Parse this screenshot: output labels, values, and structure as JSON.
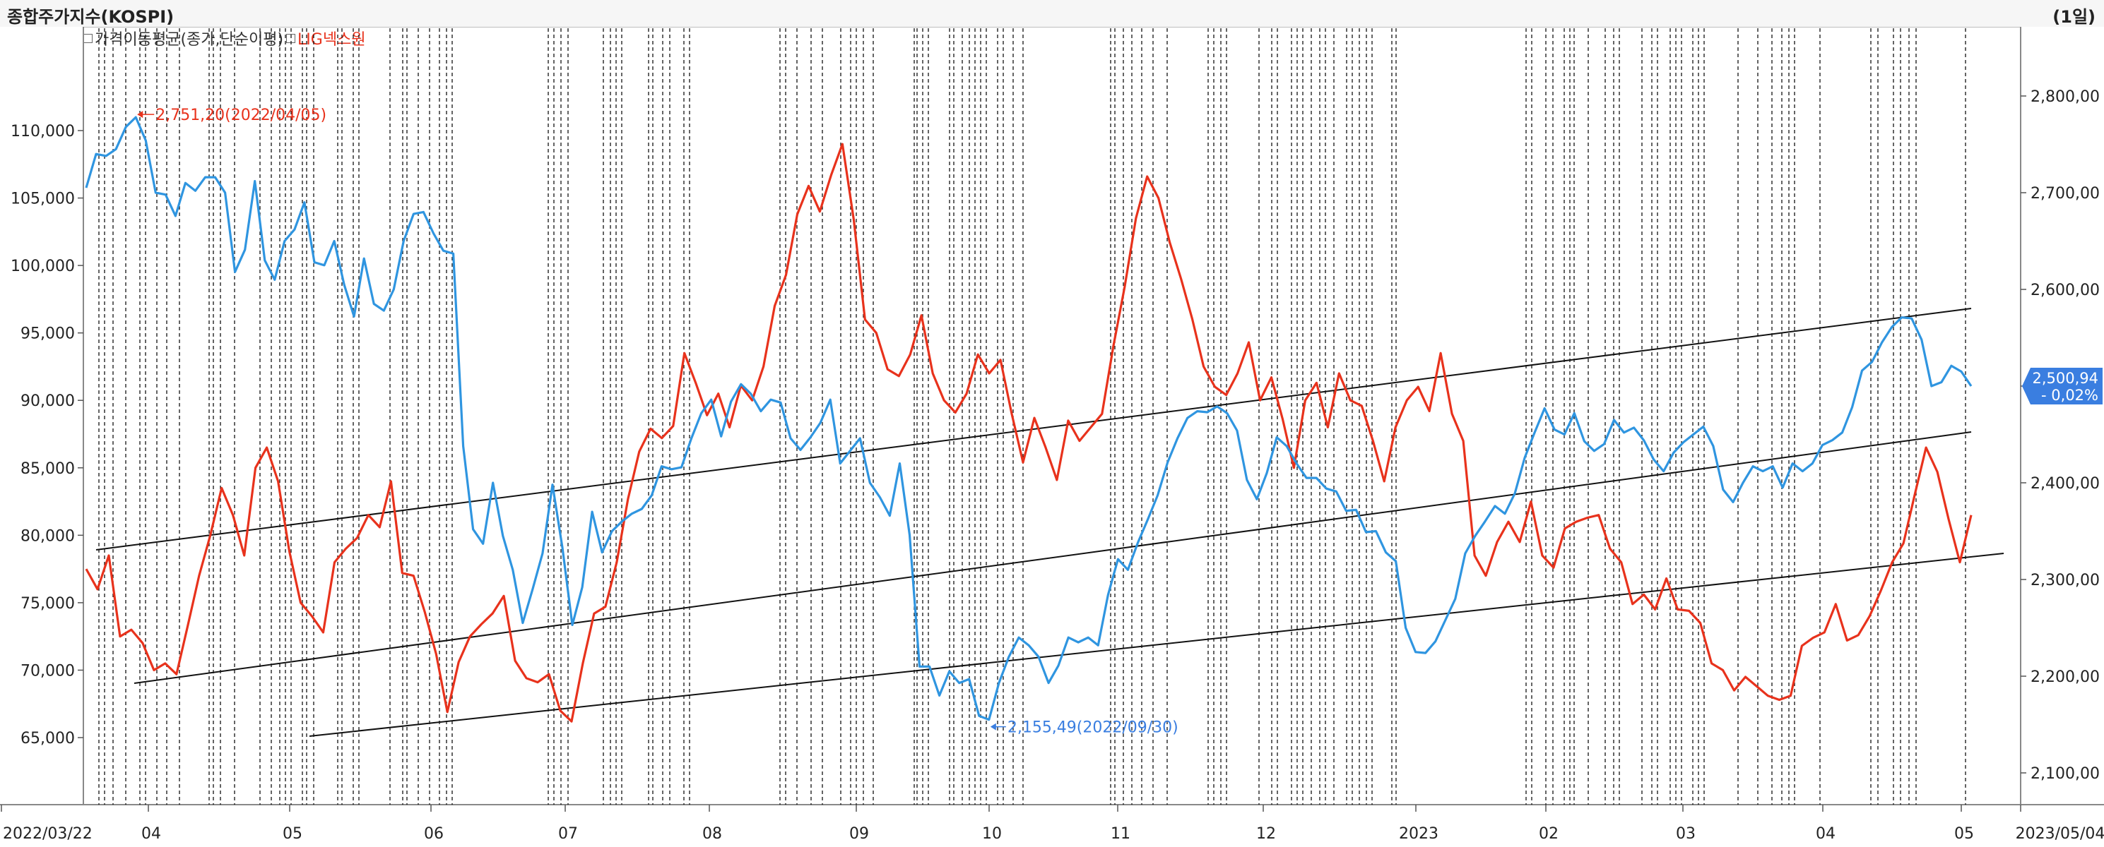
{
  "header": {
    "title": "종합주가지수(KOSPI)",
    "period": "(1일)"
  },
  "legend": [
    {
      "label": "가격이동평균(종가,단순이평)",
      "color": "#333333"
    },
    {
      "label": "LIG넥스원",
      "color": "#e8321c"
    }
  ],
  "colors": {
    "kospi": "#2f95e0",
    "lig": "#e8321c",
    "trend": "#111111",
    "grid": "#111111",
    "tag": "#3a7ee0"
  },
  "chart_data": {
    "type": "line",
    "title": "종합주가지수(KOSPI)",
    "x_range": [
      "2022/03/22",
      "2023/05/04"
    ],
    "x_tick_labels": [
      "2022/03/22",
      "04",
      "05",
      "06",
      "07",
      "08",
      "09",
      "10",
      "11",
      "12",
      "2023",
      "02",
      "03",
      "04",
      "05",
      "2023/05/04"
    ],
    "left_axis": {
      "series": "LIG넥스원",
      "ylim": [
        60000,
        116000
      ],
      "ticks": [
        "65,000",
        "70,000",
        "75,000",
        "80,000",
        "85,000",
        "90,000",
        "95,000",
        "100,000",
        "105,000",
        "110,000"
      ]
    },
    "right_axis": {
      "series": "KOSPI",
      "ylim": [
        2050,
        2840
      ],
      "ticks": [
        "2,100,00",
        "2,200,00",
        "2,300,00",
        "2,400,00",
        "2,500,00",
        "2,600,00",
        "2,700,00",
        "2,800,00"
      ]
    },
    "series": [
      {
        "name": "KOSPI",
        "axis": "right",
        "values": [
          2705,
          2740,
          2738,
          2745,
          2768,
          2778,
          2754,
          2700,
          2698,
          2676,
          2710,
          2702,
          2716,
          2716,
          2700,
          2618,
          2641,
          2712,
          2630,
          2610,
          2650,
          2662,
          2690,
          2628,
          2625,
          2650,
          2605,
          2572,
          2632,
          2585,
          2578,
          2600,
          2650,
          2678,
          2680,
          2658,
          2640,
          2637,
          2438,
          2352,
          2337,
          2400,
          2345,
          2310,
          2255,
          2290,
          2327,
          2398,
          2333,
          2253,
          2292,
          2370,
          2328,
          2350,
          2360,
          2368,
          2373,
          2387,
          2417,
          2414,
          2416,
          2446,
          2472,
          2486,
          2448,
          2484,
          2502,
          2492,
          2474,
          2486,
          2483,
          2446,
          2434,
          2447,
          2462,
          2486,
          2420,
          2433,
          2446,
          2400,
          2385,
          2366,
          2420,
          2346,
          2210,
          2210,
          2180,
          2205,
          2193,
          2197,
          2159,
          2155,
          2193,
          2220,
          2240,
          2232,
          2220,
          2193,
          2211,
          2240,
          2235,
          2240,
          2232,
          2284,
          2321,
          2310,
          2338,
          2362,
          2387,
          2421,
          2446,
          2467,
          2474,
          2473,
          2479,
          2472,
          2454,
          2403,
          2383,
          2410,
          2447,
          2438,
          2420,
          2405,
          2405,
          2394,
          2391,
          2371,
          2372,
          2349,
          2350,
          2328,
          2319,
          2250,
          2225,
          2224,
          2236,
          2258,
          2280,
          2327,
          2345,
          2360,
          2376,
          2368,
          2389,
          2426,
          2452,
          2477,
          2455,
          2450,
          2472,
          2443,
          2433,
          2440,
          2465,
          2452,
          2457,
          2444,
          2424,
          2412,
          2431,
          2442,
          2450,
          2458,
          2438,
          2393,
          2380,
          2400,
          2417,
          2412,
          2417,
          2395,
          2420,
          2412,
          2420,
          2439,
          2444,
          2452,
          2478,
          2516,
          2525,
          2545,
          2561,
          2571,
          2570,
          2548,
          2500,
          2504,
          2521,
          2515,
          2500
        ]
      },
      {
        "name": "LIG넥스원",
        "axis": "left",
        "values": [
          77500,
          76000,
          78500,
          72500,
          73000,
          72000,
          70000,
          70500,
          69700,
          73300,
          77000,
          80000,
          83500,
          81500,
          78500,
          85000,
          86500,
          84000,
          78800,
          75000,
          74000,
          72800,
          78000,
          79000,
          79800,
          81500,
          80600,
          84000,
          77200,
          77000,
          74300,
          71200,
          66900,
          70600,
          72500,
          73400,
          74200,
          75500,
          70700,
          69400,
          69100,
          69700,
          67000,
          66200,
          70500,
          74200,
          74700,
          78000,
          82700,
          86200,
          87900,
          87200,
          88100,
          93500,
          91300,
          88900,
          90500,
          88000,
          91100,
          90000,
          92500,
          97000,
          99300,
          103800,
          105900,
          104000,
          106700,
          109000,
          103400,
          96000,
          95000,
          92300,
          91800,
          93400,
          96300,
          92000,
          90000,
          89100,
          90500,
          93400,
          92000,
          93000,
          89000,
          85400,
          88700,
          86500,
          84100,
          88500,
          87000,
          88000,
          89000,
          94000,
          98400,
          103500,
          106600,
          105000,
          101700,
          99000,
          96000,
          92500,
          91000,
          90400,
          92000,
          94300,
          90000,
          91700,
          88600,
          85000,
          90000,
          91300,
          88000,
          92000,
          90000,
          89600,
          87000,
          84000,
          88000,
          90000,
          91000,
          89200,
          93500,
          89000,
          87000,
          78500,
          77000,
          79500,
          81000,
          79500,
          82500,
          78500,
          77600,
          80500,
          81000,
          81300,
          81500,
          79000,
          78000,
          74900,
          75600,
          74500,
          76800,
          74500,
          74400,
          73500,
          70500,
          70000,
          68500,
          69500,
          68800,
          68100,
          67800,
          68100,
          71800,
          72400,
          72800,
          74900,
          72200,
          72600,
          74000,
          75900,
          78000,
          79400,
          83000,
          86500,
          84700,
          81200,
          78000,
          81500
        ]
      }
    ],
    "annotations": [
      {
        "text": "2,751,20(2022/04/05)",
        "series": "KOSPI",
        "kind": "max"
      },
      {
        "text": "2,155,49(2022/09/30)",
        "series": "KOSPI",
        "kind": "min"
      }
    ],
    "current_value_tag": {
      "value": "2,500,94",
      "change": "- 0,02%"
    },
    "grid": "dashed vertical event lines",
    "trend_channel": "three parallel straight lines"
  }
}
